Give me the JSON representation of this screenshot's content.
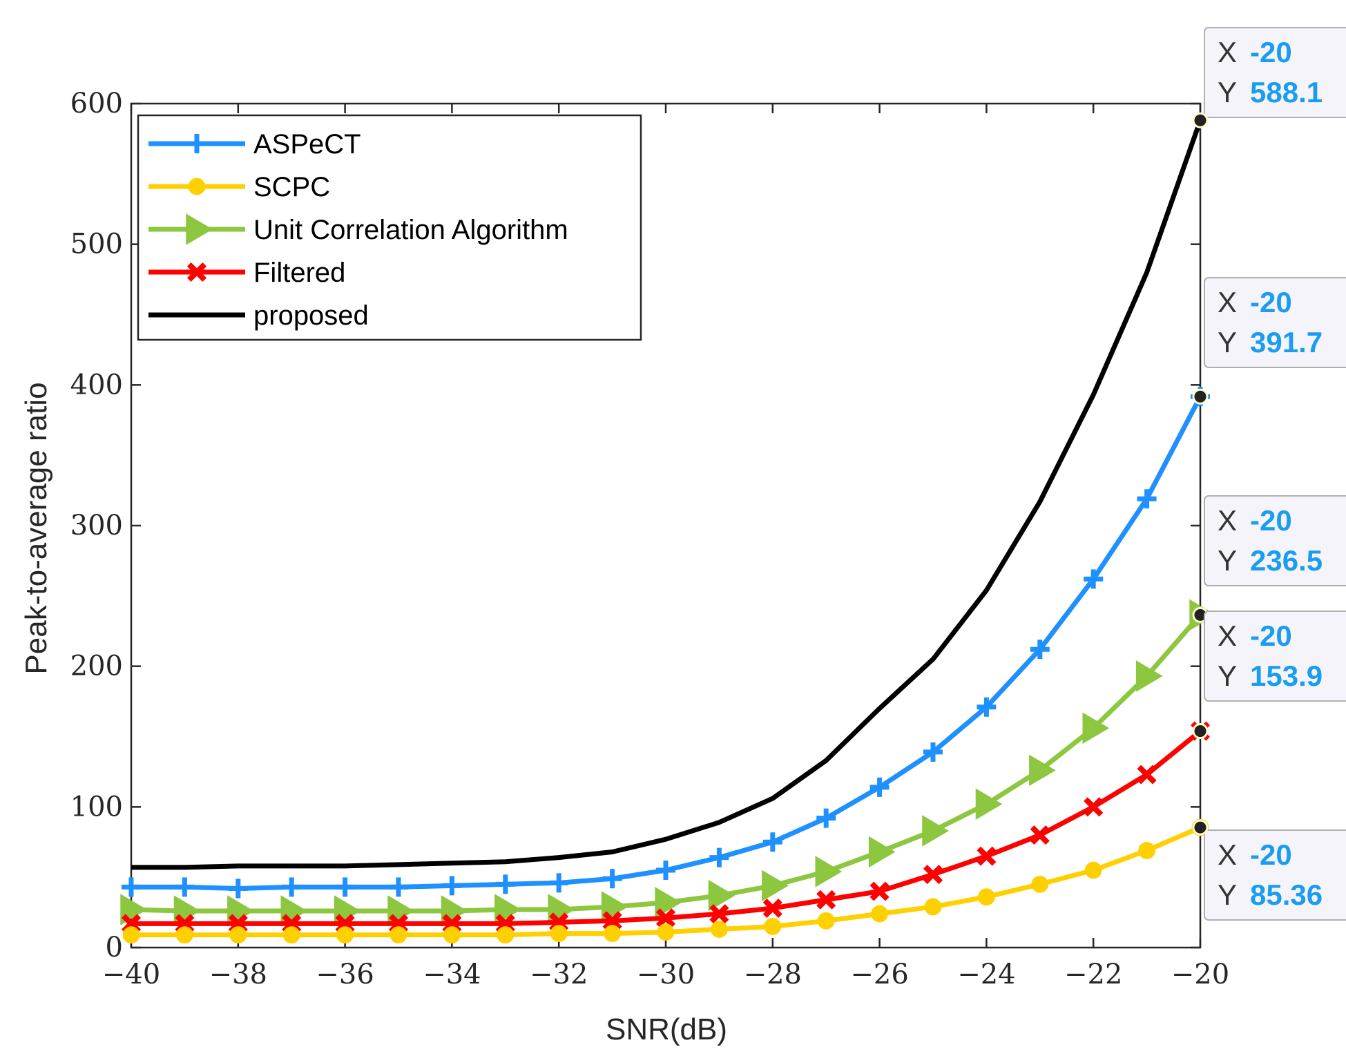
{
  "chart_data": {
    "type": "line",
    "title": "",
    "xlabel": "SNR(dB)",
    "ylabel": "Peak-to-average ratio",
    "xlim": [
      -40,
      -20
    ],
    "ylim": [
      0,
      600
    ],
    "grid": false,
    "legend_position": "top-left",
    "x": [
      -40,
      -39,
      -38,
      -37,
      -36,
      -35,
      -34,
      -33,
      -32,
      -31,
      -30,
      -29,
      -28,
      -27,
      -26,
      -25,
      -24,
      -23,
      -22,
      -21,
      -20
    ],
    "x_ticks": [
      -40,
      -38,
      -36,
      -34,
      -32,
      -30,
      -28,
      -26,
      -24,
      -22,
      -20
    ],
    "x_tick_labels": [
      "−40",
      "−38",
      "−36",
      "−34",
      "−32",
      "−30",
      "−28",
      "−26",
      "−24",
      "−22",
      "−20"
    ],
    "y_ticks": [
      0,
      100,
      200,
      300,
      400,
      500,
      600
    ],
    "y_tick_labels": [
      "0",
      "100",
      "200",
      "300",
      "400",
      "500",
      "600"
    ],
    "series": [
      {
        "name": "ASPeCT",
        "color": "#1e90ff",
        "marker": "plus",
        "values": [
          43,
          43,
          42,
          43,
          43,
          43,
          44,
          45,
          46,
          49,
          55,
          64,
          75,
          92,
          114,
          139,
          171,
          212,
          262,
          319,
          391.7
        ]
      },
      {
        "name": "SCPC",
        "color": "#ffd000",
        "marker": "circle",
        "values": [
          9,
          9,
          9,
          9,
          9,
          9,
          9,
          9,
          10,
          10,
          11,
          13,
          15,
          19,
          24,
          29,
          36,
          45,
          55,
          69,
          85.36
        ]
      },
      {
        "name": "Unit Correlation Algorithm",
        "color": "#8dc63f",
        "marker": "triangle-right",
        "values": [
          27,
          26,
          26,
          26,
          26,
          26,
          26,
          27,
          27,
          29,
          32,
          37,
          44,
          54,
          68,
          83,
          102,
          126,
          156,
          193,
          236.5
        ]
      },
      {
        "name": "Filtered",
        "color": "#ff0000",
        "marker": "x",
        "values": [
          17,
          17,
          17,
          17,
          17,
          17,
          17,
          17,
          18,
          19,
          21,
          24,
          28,
          34,
          40,
          52,
          65,
          80,
          100,
          123,
          153.9
        ]
      },
      {
        "name": "proposed",
        "color": "#000000",
        "marker": "none",
        "values": [
          57,
          57,
          58,
          58,
          58,
          59,
          60,
          61,
          64,
          68,
          77,
          89,
          106,
          133,
          170,
          205,
          254,
          317,
          393,
          480,
          588.1
        ]
      }
    ],
    "datatips": [
      {
        "x_label": "X",
        "x_value": "-20",
        "y_label": "Y",
        "y_value": "588.1",
        "y": 588.1
      },
      {
        "x_label": "X",
        "x_value": "-20",
        "y_label": "Y",
        "y_value": "391.7",
        "y": 391.7
      },
      {
        "x_label": "X",
        "x_value": "-20",
        "y_label": "Y",
        "y_value": "236.5",
        "y": 236.5
      },
      {
        "x_label": "X",
        "x_value": "-20",
        "y_label": "Y",
        "y_value": "153.9",
        "y": 153.9
      },
      {
        "x_label": "X",
        "x_value": "-20",
        "y_label": "Y",
        "y_value": "85.36",
        "y": 85.36
      }
    ],
    "datatip_value_color": "#1a9cf0"
  }
}
